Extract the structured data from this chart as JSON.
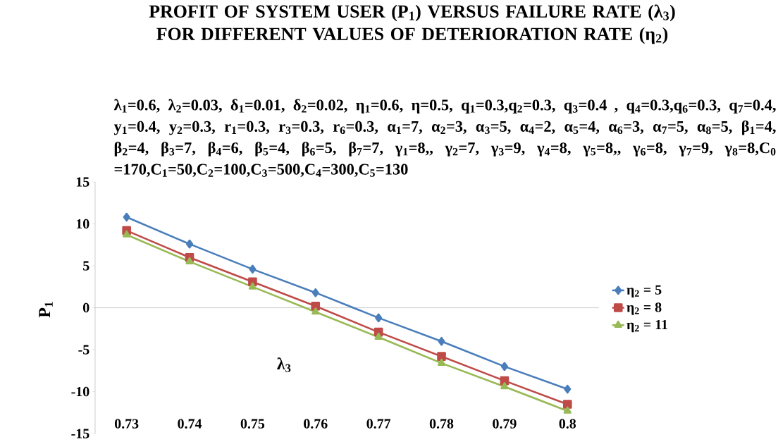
{
  "chart_data": {
    "type": "line",
    "title": "PROFIT OF SYSTEM USER (P$_{1}$) VERSUS FAILURE RATE (λ$_{3}$) FOR DIFFERENT VALUES OF DETERIORATION RATE (η$_{2}$)",
    "subtitle": "λ$_{1}$=0.6, λ$_{2}$=0.03, δ$_{1}$=0.01, δ$_{2}$=0.02, η$_{1}$=0.6, η=0.5, q$_{1}$=0.3,q$_{2}$=0.3, q$_{3}$=0.4 , q$_{4}$=0.3,q$_{6}$=0.3, q$_{7}$=0.4, y$_{1}$=0.4, y$_{2}$=0.3, r$_{1}$=0.3, r$_{3}$=0.3, r$_{6}$=0.3, α$_{1}$=7, α$_{2}$=3, α$_{3}$=5, α$_{4}$=2, α$_{5}$=4, α$_{6}$=3, α$_{7}$=5, α$_{8}$=5, β$_{1}$=4, β$_{2}$=4, β$_{3}$=7, β$_{4}$=6, β$_{5}$=4, β$_{6}$=5, β$_{7}$=7, γ$_{1}$=8,, γ$_{2}$=7, γ$_{3}$=9, γ$_{4}$=8, γ$_{5}$=8,, γ$_{6}$=8, γ$_{7}$=9, γ$_{8}$=8,C$_{0}$ =170,C$_{1}$=50,C$_{2}$=100,C$_{3}$=500,C$_{4}$=300,C$_{5}$=130",
    "xlabel": "λ$_{3}$",
    "ylabel": "P$_{1}$",
    "categories": [
      "0.73",
      "0.74",
      "0.75",
      "0.76",
      "0.77",
      "0.78",
      "0.79",
      "0.8"
    ],
    "series": [
      {
        "name": "η$_{2}$     = 5",
        "color": "#4a7ebb",
        "marker": "diamond",
        "values": [
          10.8,
          7.6,
          4.6,
          1.8,
          -1.2,
          -4.0,
          -7.0,
          -9.7
        ]
      },
      {
        "name": "η$_{2}$     = 8",
        "color": "#be4b48",
        "marker": "square",
        "values": [
          9.2,
          6.0,
          3.1,
          0.2,
          -2.9,
          -5.8,
          -8.7,
          -11.5
        ]
      },
      {
        "name": "η$_{2}$     = 11",
        "color": "#98b954",
        "marker": "triangle",
        "values": [
          8.7,
          5.5,
          2.5,
          -0.5,
          -3.5,
          -6.6,
          -9.4,
          -12.3
        ]
      }
    ],
    "ylim": [
      -15,
      15
    ],
    "yticks": [
      -15,
      -10,
      -5,
      0,
      5,
      10,
      15
    ],
    "legend": "right"
  }
}
